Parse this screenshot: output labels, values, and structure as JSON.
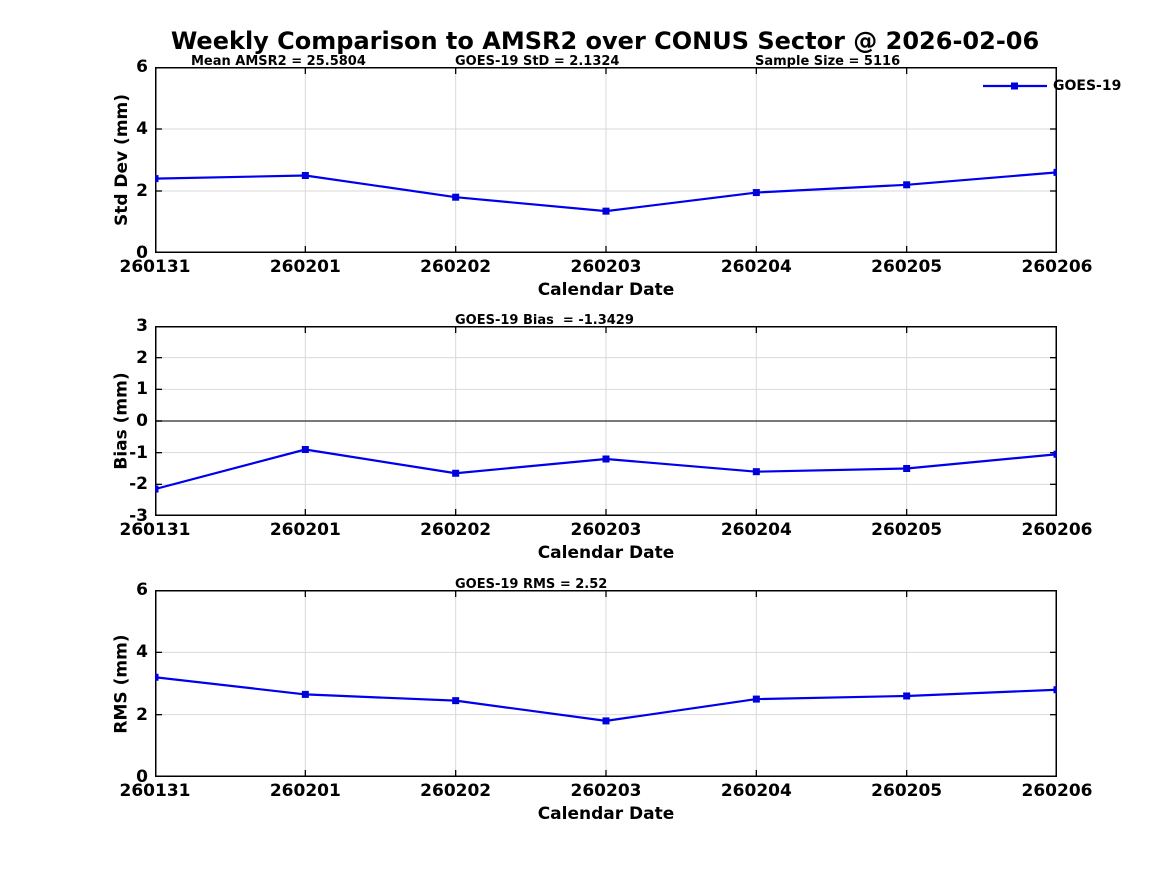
{
  "title": "Weekly Comparison to AMSR2 over CONUS Sector @ 2026-02-06",
  "colors": {
    "line": "#0000ee",
    "marker": "#0000dd",
    "grid": "#d9d9d9",
    "zero_line": "#4d4d4d",
    "axis": "#000000",
    "text": "#000000"
  },
  "chart_data": [
    {
      "id": "std-dev",
      "type": "line",
      "categories": [
        "260131",
        "260201",
        "260202",
        "260203",
        "260204",
        "260205",
        "260206"
      ],
      "series": [
        {
          "name": "GOES-19",
          "values": [
            2.4,
            2.5,
            1.8,
            1.35,
            1.95,
            2.2,
            2.6
          ]
        }
      ],
      "xlabel": "Calendar Date",
      "ylabel": "Std Dev (mm)",
      "ylim": [
        0,
        6
      ],
      "yticks": [
        0,
        2,
        4,
        6
      ],
      "grid": true,
      "marker": "square",
      "zero_line": false,
      "annotations": [
        {
          "text": "Mean AMSR2 = 25.5804",
          "xfrac": 0.04
        },
        {
          "text": "GOES-19 StD = 2.1324",
          "xfrac": 0.333
        },
        {
          "text": "Sample Size = 5116",
          "xfrac": 0.665
        }
      ],
      "legend": {
        "label": "GOES-19",
        "position": "top-right"
      }
    },
    {
      "id": "bias",
      "type": "line",
      "categories": [
        "260131",
        "260201",
        "260202",
        "260203",
        "260204",
        "260205",
        "260206"
      ],
      "series": [
        {
          "name": "GOES-19",
          "values": [
            -2.15,
            -0.9,
            -1.65,
            -1.2,
            -1.6,
            -1.5,
            -1.05
          ]
        }
      ],
      "xlabel": "Calendar Date",
      "ylabel": "Bias (mm)",
      "ylim": [
        -3,
        3
      ],
      "yticks": [
        -3,
        -2,
        -1,
        0,
        1,
        2,
        3
      ],
      "grid": true,
      "marker": "square",
      "zero_line": true,
      "annotations": [
        {
          "text": "GOES-19 Bias  = -1.3429",
          "xfrac": 0.333
        }
      ],
      "legend": null
    },
    {
      "id": "rms",
      "type": "line",
      "categories": [
        "260131",
        "260201",
        "260202",
        "260203",
        "260204",
        "260205",
        "260206"
      ],
      "series": [
        {
          "name": "GOES-19",
          "values": [
            3.2,
            2.65,
            2.45,
            1.8,
            2.5,
            2.6,
            2.8
          ]
        }
      ],
      "xlabel": "Calendar Date",
      "ylabel": "RMS (mm)",
      "ylim": [
        0,
        6
      ],
      "yticks": [
        0,
        2,
        4,
        6
      ],
      "grid": true,
      "marker": "square",
      "zero_line": false,
      "annotations": [
        {
          "text": "GOES-19 RMS = 2.52",
          "xfrac": 0.333
        }
      ],
      "legend": null
    }
  ]
}
